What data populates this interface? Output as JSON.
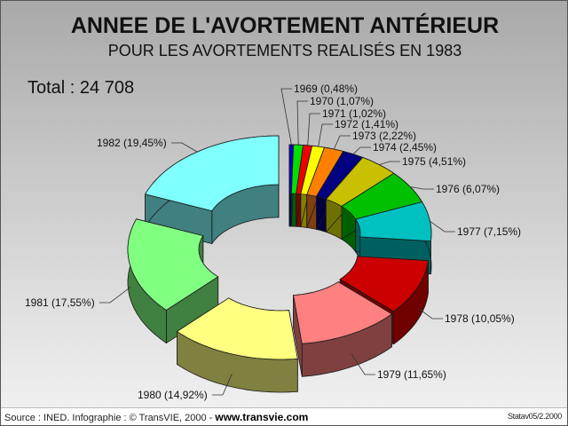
{
  "header": {
    "title": "ANNEE DE L'AVORTEMENT ANTÉRIEUR",
    "subtitle": "POUR LES AVORTEMENTS REALISÉS EN 1983",
    "total_label": "Total : 24 708"
  },
  "footer": {
    "source_text": "Source : INED. Infographie : © TransVIE, 2000 - ",
    "website": "www.transvie.com",
    "reference": "Statav05/2.2000"
  },
  "chart_data": {
    "type": "pie",
    "subtype": "3d-exploded-donut",
    "title": "ANNEE DE L'AVORTEMENT ANTÉRIEUR",
    "subtitle": "POUR LES AVORTEMENTS REALISÉS EN 1983",
    "total": 24708,
    "categories": [
      "1969",
      "1970",
      "1971",
      "1972",
      "1973",
      "1974",
      "1975",
      "1976",
      "1977",
      "1978",
      "1979",
      "1980",
      "1981",
      "1982"
    ],
    "values": [
      0.48,
      1.07,
      1.02,
      1.41,
      2.22,
      2.45,
      4.51,
      6.07,
      7.15,
      10.05,
      11.65,
      14.92,
      17.55,
      19.45
    ],
    "labels": [
      "1969 (0,48%)",
      "1970 (1,07%)",
      "1971 (1,02%)",
      "1972 (1,41%)",
      "1973 (2,22%)",
      "1974 (2,45%)",
      "1975 (4,51%)",
      "1976 (6,07%)",
      "1977 (7,15%)",
      "1978 (10,05%)",
      "1979 (11,65%)",
      "1980 (14,92%)",
      "1981 (17,55%)",
      "1982 (19,45%)"
    ],
    "colors": [
      "#0000cc",
      "#00e000",
      "#ee0000",
      "#ffff00",
      "#ff8000",
      "#000080",
      "#c8c000",
      "#00c000",
      "#00c0c0",
      "#cc0000",
      "#ff8080",
      "#ffff80",
      "#80ff80",
      "#80ffff"
    ],
    "side_colors": [
      "#000060",
      "#006000",
      "#800000",
      "#808000",
      "#804010",
      "#000040",
      "#707000",
      "#006000",
      "#006060",
      "#700000",
      "#804040",
      "#808040",
      "#408040",
      "#408080"
    ],
    "legend": "none (leader-line labels)",
    "start_angle": "12 o'clock, clockwise"
  }
}
